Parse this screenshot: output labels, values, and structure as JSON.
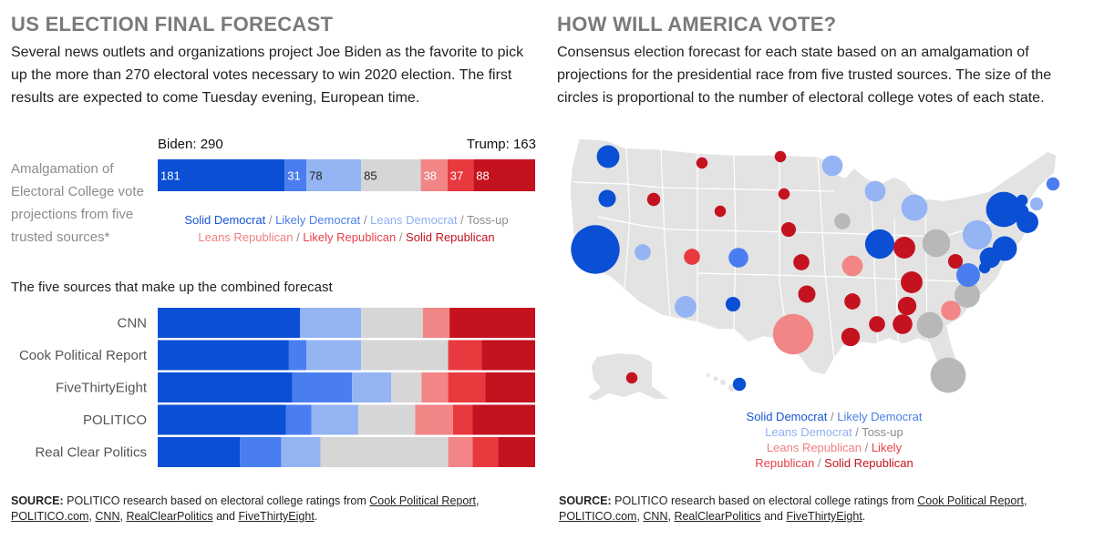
{
  "left": {
    "heading": "US ELECTION FINAL FORECAST",
    "intro": "Several news outlets and organizations project Joe Biden as the favorite to pick up the more than 270 electoral votes necessary to win 2020 election. The first results are expected to come Tuesday evening, European time.",
    "biden_total": "Biden: 290",
    "trump_total": "Trump: 163",
    "amalgamation_note": "Amalgamation of Electoral College vote projections from five trusted sources*",
    "sources_heading": "The five sources that make up the combined forecast",
    "source_note": {
      "label": "SOURCE:",
      "text": " POLITICO research based on electoral college ratings from ",
      "links": [
        "Cook Political Report",
        "POLITICO.com",
        "CNN",
        "RealClearPolitics",
        "FiveThirtyEight"
      ],
      "and": " and ",
      "sep": ", ",
      "end": "."
    }
  },
  "legend": {
    "solid_dem": "Solid Democrat",
    "likely_dem": "Likely Democrat",
    "leans_dem": "Leans Democrat",
    "tossup": "Toss-up",
    "leans_rep": "Leans Republican",
    "likely_rep": "Likely Republican",
    "solid_rep": "Solid Republican",
    "separator": " / ",
    "likely_rep_part1": "Likely",
    "likely_rep_part2": "Republican"
  },
  "colors": {
    "solid_dem": "#0a4fd4",
    "likely_dem": "#4a7ef0",
    "leans_dem": "#94b4f4",
    "tossup": "#d6d6d6",
    "leans_rep": "#f28585",
    "likely_rep": "#e8393f",
    "solid_rep": "#c4121f",
    "map_land": "#e3e3e3",
    "map_tossup_circle": "#b8b8b8"
  },
  "right": {
    "heading": "HOW WILL AMERICA VOTE?",
    "intro": "Consensus election forecast for each state based on an amalgamation of projections for the presidential race from five trusted sources. The size of the circles is proportional to the number of electoral college votes of each state.",
    "source_note": {
      "label": "SOURCE:",
      "text": " POLITICO research based on electoral college ratings from ",
      "links": [
        "Cook Political Report",
        "POLITICO.com",
        "CNN",
        "RealClearPolitics",
        "FiveThirtyEight"
      ],
      "and": " and ",
      "sep": ", ",
      "end": "."
    }
  },
  "chart_data": [
    {
      "type": "bar",
      "orientation": "horizontal-stacked",
      "categories": [
        "Solid Democrat",
        "Likely Democrat",
        "Leans Democrat",
        "Toss-up",
        "Leans Republican",
        "Likely Republican",
        "Solid Republican"
      ],
      "values": [
        181,
        31,
        78,
        85,
        38,
        37,
        88
      ],
      "labels": [
        "181",
        "31",
        "78",
        "85",
        "38",
        "37",
        "88"
      ]
    },
    {
      "type": "bar",
      "orientation": "horizontal-stacked",
      "title": "The five sources that make up the combined forecast",
      "categories": [
        "CNN",
        "Cook Political Report",
        "FiveThirtyEight",
        "POLITICO",
        "Real Clear Politics"
      ],
      "series": [
        {
          "name": "Solid Democrat",
          "values": [
            203,
            187,
            192,
            183,
            117
          ]
        },
        {
          "name": "Likely Democrat",
          "values": [
            0,
            25,
            85,
            36,
            59
          ]
        },
        {
          "name": "Leans Democrat",
          "values": [
            87,
            78,
            56,
            67,
            56
          ]
        },
        {
          "name": "Toss-up",
          "values": [
            88,
            124,
            43,
            81,
            182
          ]
        },
        {
          "name": "Leans Republican",
          "values": [
            38,
            0,
            38,
            54,
            35
          ]
        },
        {
          "name": "Likely Republican",
          "values": [
            0,
            48,
            53,
            28,
            36
          ]
        },
        {
          "name": "Solid Republican",
          "values": [
            122,
            76,
            71,
            89,
            53
          ]
        }
      ]
    },
    {
      "type": "scatter",
      "description_basis": "proportional-symbol map",
      "points": [
        {
          "x": 52,
          "y": 32,
          "votes": 12,
          "rating": "Solid Democrat"
        },
        {
          "x": 51,
          "y": 78,
          "votes": 7,
          "rating": "Solid Democrat"
        },
        {
          "x": 38,
          "y": 134,
          "votes": 55,
          "rating": "Solid Democrat"
        },
        {
          "x": 90,
          "y": 137,
          "votes": 6,
          "rating": "Leans Democrat"
        },
        {
          "x": 155,
          "y": 39,
          "votes": 3,
          "rating": "Solid Republican"
        },
        {
          "x": 102,
          "y": 79,
          "votes": 4,
          "rating": "Solid Republican"
        },
        {
          "x": 175,
          "y": 92,
          "votes": 3,
          "rating": "Solid Republican"
        },
        {
          "x": 144,
          "y": 142,
          "votes": 6,
          "rating": "Likely Republican"
        },
        {
          "x": 195,
          "y": 143,
          "votes": 9,
          "rating": "Likely Democrat"
        },
        {
          "x": 137,
          "y": 197,
          "votes": 11,
          "rating": "Leans Democrat"
        },
        {
          "x": 189,
          "y": 194,
          "votes": 5,
          "rating": "Solid Democrat"
        },
        {
          "x": 196,
          "y": 282,
          "votes": 4,
          "rating": "Solid Democrat"
        },
        {
          "x": 78,
          "y": 275,
          "votes": 3,
          "rating": "Solid Republican"
        },
        {
          "x": 241,
          "y": 32,
          "votes": 3,
          "rating": "Solid Republican"
        },
        {
          "x": 245,
          "y": 73,
          "votes": 3,
          "rating": "Solid Republican"
        },
        {
          "x": 250,
          "y": 112,
          "votes": 5,
          "rating": "Solid Republican"
        },
        {
          "x": 264,
          "y": 148,
          "votes": 6,
          "rating": "Solid Republican"
        },
        {
          "x": 270,
          "y": 183,
          "votes": 7,
          "rating": "Solid Republican"
        },
        {
          "x": 255,
          "y": 227,
          "votes": 38,
          "rating": "Leans Republican"
        },
        {
          "x": 298,
          "y": 42,
          "votes": 10,
          "rating": "Leans Democrat"
        },
        {
          "x": 309,
          "y": 103,
          "votes": 6,
          "rating": "Toss-up"
        },
        {
          "x": 320,
          "y": 152,
          "votes": 10,
          "rating": "Leans Republican"
        },
        {
          "x": 320,
          "y": 191,
          "votes": 6,
          "rating": "Solid Republican"
        },
        {
          "x": 318,
          "y": 230,
          "votes": 8,
          "rating": "Solid Republican"
        },
        {
          "x": 345,
          "y": 70,
          "votes": 10,
          "rating": "Leans Democrat"
        },
        {
          "x": 350,
          "y": 128,
          "votes": 20,
          "rating": "Solid Democrat"
        },
        {
          "x": 347,
          "y": 216,
          "votes": 6,
          "rating": "Solid Republican"
        },
        {
          "x": 388,
          "y": 88,
          "votes": 16,
          "rating": "Leans Democrat"
        },
        {
          "x": 377,
          "y": 132,
          "votes": 11,
          "rating": "Solid Republican"
        },
        {
          "x": 385,
          "y": 170,
          "votes": 11,
          "rating": "Solid Republican"
        },
        {
          "x": 380,
          "y": 196,
          "votes": 8,
          "rating": "Solid Republican"
        },
        {
          "x": 375,
          "y": 216,
          "votes": 9,
          "rating": "Solid Republican"
        },
        {
          "x": 412,
          "y": 127,
          "votes": 18,
          "rating": "Toss-up"
        },
        {
          "x": 405,
          "y": 217,
          "votes": 16,
          "rating": "Toss-up"
        },
        {
          "x": 428,
          "y": 201,
          "votes": 9,
          "rating": "Leans Republican"
        },
        {
          "x": 446,
          "y": 184,
          "votes": 15,
          "rating": "Toss-up"
        },
        {
          "x": 433,
          "y": 147,
          "votes": 5,
          "rating": "Solid Republican"
        },
        {
          "x": 447,
          "y": 162,
          "votes": 13,
          "rating": "Likely Democrat"
        },
        {
          "x": 457,
          "y": 118,
          "votes": 20,
          "rating": "Leans Democrat"
        },
        {
          "x": 486,
          "y": 90,
          "votes": 29,
          "rating": "Solid Democrat"
        },
        {
          "x": 487,
          "y": 133,
          "votes": 14,
          "rating": "Solid Democrat"
        },
        {
          "x": 471,
          "y": 143,
          "votes": 10,
          "rating": "Solid Democrat"
        },
        {
          "x": 465,
          "y": 154,
          "votes": 3,
          "rating": "Solid Democrat"
        },
        {
          "x": 512,
          "y": 104,
          "votes": 11,
          "rating": "Solid Democrat"
        },
        {
          "x": 504,
          "y": 93,
          "votes": 7,
          "rating": "Solid Democrat"
        },
        {
          "x": 506,
          "y": 80,
          "votes": 3,
          "rating": "Solid Democrat"
        },
        {
          "x": 522,
          "y": 84,
          "votes": 4,
          "rating": "Leans Democrat"
        },
        {
          "x": 540,
          "y": 62,
          "votes": 4,
          "rating": "Likely Democrat"
        },
        {
          "x": 425,
          "y": 272,
          "votes": 29,
          "rating": "Toss-up"
        }
      ]
    }
  ]
}
